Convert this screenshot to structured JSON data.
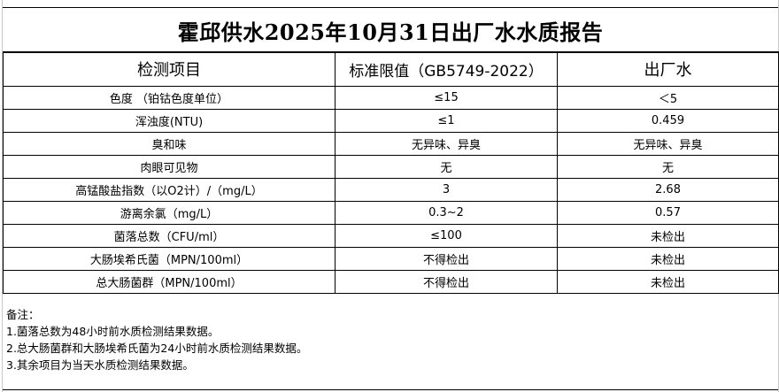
{
  "title": "霍邱供水2025年10月31日出厂水水质报告",
  "headers": [
    "检测项目",
    "标准限值（GB5749-2022）",
    "出厂水"
  ],
  "rows": [
    [
      "色度 （铂钴色度单位）",
      "≤15",
      "＜5"
    ],
    [
      "浑浊度(NTU)",
      "≤1",
      "0.459"
    ],
    [
      "臭和味",
      "无异味、异臭",
      "无异味、异臭"
    ],
    [
      "肉眼可见物",
      "无",
      "无"
    ],
    [
      "高锰酸盐指数（以O2计）/（mg/L）",
      "3",
      "2.68"
    ],
    [
      "游离余氯（mg/L）",
      "0.3~2",
      "0.57"
    ],
    [
      "菌落总数（CFU/ml）",
      "≤100",
      "未检出"
    ],
    [
      "大肠埃希氏菌（MPN/100ml）",
      "不得检出",
      "未检出"
    ],
    [
      "总大肠菌群（MPN/100ml）",
      "不得检出",
      "未检出"
    ]
  ],
  "notes": [
    "备注：",
    "1.菌落总数为48小时前水质检测结果数据。",
    "2.总大肠菌群和大肠埃希氏菌为24小时前水质检测结果数据。",
    "3.其余项目为当天水质检测结果数据。"
  ]
}
